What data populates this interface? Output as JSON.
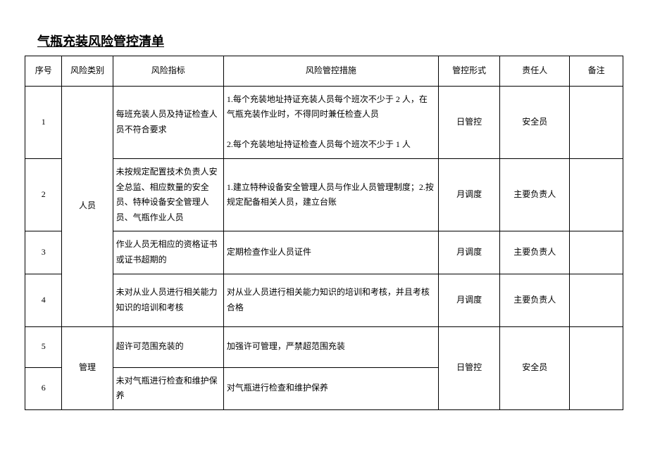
{
  "title": "气瓶充装风险管控清单",
  "headers": {
    "seq": "序号",
    "category": "风险类别",
    "risk": "风险指标",
    "measure": "风险管控措施",
    "form": "管控形式",
    "responsible": "责任人",
    "note": "备注"
  },
  "categories": {
    "personnel": "人员",
    "management": "管理"
  },
  "rows": {
    "r1": {
      "seq": "1",
      "risk": "每班充装人员及持证检查人员不符合要求",
      "measure": "1.每个充装地址持证充装人员每个班次不少于 2 人，在气瓶充装作业时，不得同时兼任检查人员\n\n2.每个充装地址持证检查人员每个班次不少于 1 人",
      "form": "日管控",
      "responsible": "安全员",
      "note": ""
    },
    "r2": {
      "seq": "2",
      "risk": "未按规定配置技术负责人安全总监、相应数量的安全员、特种设备安全管理人员、气瓶作业人员",
      "measure": "1.建立特种设备安全管理人员与作业人员管理制度；2.按规定配备相关人员，建立台账",
      "form": "月调度",
      "responsible": "主要负责人",
      "note": ""
    },
    "r3": {
      "seq": "3",
      "risk": "作业人员无相应的资格证书或证书超期的",
      "measure": "定期检查作业人员证件",
      "form": "月调度",
      "responsible": "主要负责人",
      "note": ""
    },
    "r4": {
      "seq": "4",
      "risk": "未对从业人员进行相关能力知识的培训和考核",
      "measure": "对从业人员进行相关能力知识的培训和考核，并且考核合格",
      "form": "月调度",
      "responsible": "主要负责人",
      "note": ""
    },
    "r5": {
      "seq": "5",
      "risk": "超许可范围充装的",
      "measure": "加强许可管理，严禁超范围充装",
      "form": "日管控",
      "responsible": "安全员",
      "note": ""
    },
    "r6": {
      "seq": "6",
      "risk": "未对气瓶进行检查和维护保养",
      "measure": "对气瓶进行检查和维护保养",
      "form": "",
      "responsible": "",
      "note": ""
    }
  },
  "style": {
    "background_color": "#ffffff",
    "border_color": "#000000",
    "text_color": "#000000",
    "title_fontsize": 18,
    "cell_fontsize": 12,
    "font_family": "SimSun"
  }
}
